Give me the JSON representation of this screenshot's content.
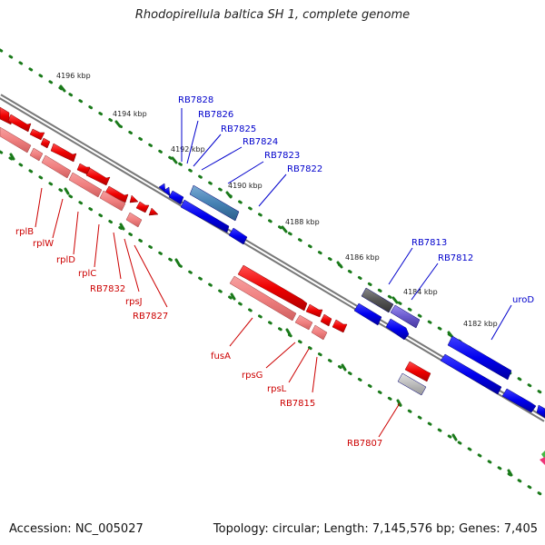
{
  "title": "Rhodopirellula baltica SH 1, complete genome",
  "footer": {
    "accession": "Accession: NC_005027",
    "topology": "Topology: circular; Length: 7,145,576 bp; Genes: 7,405"
  },
  "colors": {
    "background": "#ffffff",
    "backbone": "#777777",
    "tick": "#1a7a1a",
    "forward_gene": "#ee0000",
    "forward_gene_light": "#f08080",
    "reverse_gene": "#0000ee",
    "reverse_gene_steel": "#4682b4",
    "reverse_gene_slate": "#6a5acd",
    "gene_dark_gray": "#555555",
    "gene_light_gray": "#bbbbbb",
    "label_red": "#cc0000",
    "label_blue": "#0000cc"
  },
  "ruler": {
    "ticks": [
      "4196 kbp",
      "4194 kbp",
      "4192 kbp",
      "4190 kbp",
      "4188 kbp",
      "4186 kbp",
      "4184 kbp",
      "4182 kbp"
    ]
  },
  "gene_labels": {
    "forward": [
      "rplB",
      "rplW",
      "rplD",
      "rplC",
      "RB7832",
      "rpsJ",
      "RB7827",
      "fusA",
      "rpsG",
      "rpsL",
      "RB7815",
      "RB7807"
    ],
    "reverse": [
      "RB7828",
      "RB7826",
      "RB7825",
      "RB7824",
      "RB7823",
      "RB7822",
      "RB7813",
      "RB7812",
      "uroD"
    ]
  }
}
